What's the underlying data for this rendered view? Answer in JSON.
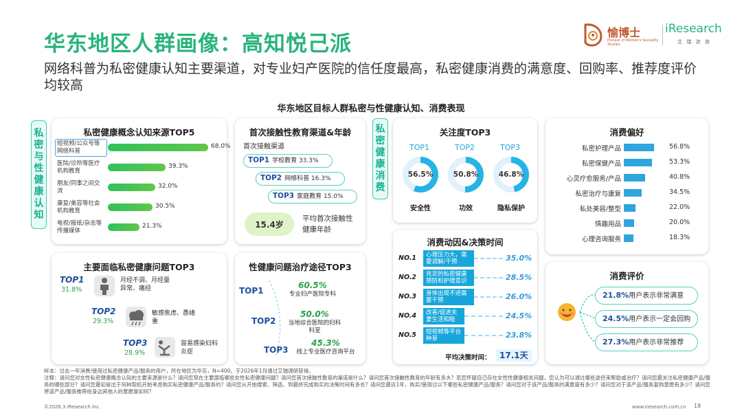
{
  "header": {
    "title": "华东地区人群画像：高知悦己派",
    "subtitle": "网络科普为私密健康认知主要渠道，对专业妇产医院的信任度最高，私密健康消费的满意度、回购率、推荐度评价均较高",
    "brand1_main": "愉博士",
    "brand1_sub": "Pioneer of Women's Sexuality Studies",
    "brand2_main": "iResearch",
    "brand2_sub": "艾 瑞 咨 询"
  },
  "chart_title": "华东地区目标人群私密与性健康认知、消费表现",
  "left_label": [
    "私",
    "密",
    "与",
    "性",
    "健",
    "康",
    "认",
    "知"
  ],
  "mid_label": [
    "私",
    "密",
    "健",
    "康",
    "消",
    "费"
  ],
  "sources": {
    "title": "私密健康概念认知来源TOP5",
    "items": [
      {
        "label": "短视频/公众号等网络科普",
        "pct": "68.0%",
        "value": 68.0
      },
      {
        "label": "医院/诊所等医疗机构教育",
        "pct": "39.3%",
        "value": 39.3
      },
      {
        "label": "朋友/同事之间交流",
        "pct": "32.0%",
        "value": 32.0
      },
      {
        "label": "康复/美容等社会机构教育",
        "pct": "30.5%",
        "value": 30.5
      },
      {
        "label": "电视/报纸/杂志等传播媒体",
        "pct": "21.3%",
        "value": 21.3
      }
    ]
  },
  "firstedu": {
    "title": "首次接触性教育渠道&年龄",
    "subtitle": "首次接触渠道",
    "items": [
      {
        "top": "TOP1",
        "text": "学校教育 33.3%"
      },
      {
        "top": "TOP2",
        "text": "网络科普 16.3%"
      },
      {
        "top": "TOP3",
        "text": "家庭教育 15.0%"
      }
    ],
    "age": "15.4岁",
    "age_label": "平均首次接触性健康年龄"
  },
  "attention": {
    "title": "关注度TOP3",
    "items": [
      {
        "top": "TOP1",
        "pct": "56.5%",
        "value": 56.5,
        "name": "安全性"
      },
      {
        "top": "TOP2",
        "pct": "50.8%",
        "value": 50.8,
        "name": "功效"
      },
      {
        "top": "TOP3",
        "pct": "46.8%",
        "value": 46.8,
        "name": "隐私保护"
      }
    ]
  },
  "preference": {
    "title": "消费偏好",
    "items": [
      {
        "label": "私密护理产品",
        "pct": "56.8%",
        "value": 56.8
      },
      {
        "label": "私密保健产品",
        "pct": "53.3%",
        "value": 53.3
      },
      {
        "label": "心灵疗愈服务/产品",
        "pct": "40.8%",
        "value": 40.8
      },
      {
        "label": "私密治疗与康复",
        "pct": "34.5%",
        "value": 34.5
      },
      {
        "label": "私处美容/整型",
        "pct": "22.0%",
        "value": 22.0
      },
      {
        "label": "情趣用品",
        "pct": "20.0%",
        "value": 20.0
      },
      {
        "label": "心理咨询服务",
        "pct": "18.3%",
        "value": 18.3
      }
    ]
  },
  "problems": {
    "title": "主要面临私密健康问题TOP3",
    "items": [
      {
        "top": "TOP1",
        "pct": "31.8%",
        "text": "月经不调、月经量异常、痛经"
      },
      {
        "top": "TOP2",
        "pct": "29.3%",
        "text": "敏感焦虑、愚绪重"
      },
      {
        "top": "TOP3",
        "pct": "28.9%",
        "text": "容易感染妇科炎症"
      }
    ]
  },
  "treatment": {
    "title": "性健康问题治疗途径TOP3",
    "items": [
      {
        "top": "TOP1",
        "pct": "60.5%",
        "text": "专业妇产医院专科"
      },
      {
        "top": "TOP2",
        "pct": "50.0%",
        "text": "当地综合医院的妇科科室"
      },
      {
        "top": "TOP3",
        "pct": "45.3%",
        "text": "线上专业医疗咨询平台"
      }
    ]
  },
  "motivation": {
    "title": "消费动因&决策时间",
    "items": [
      {
        "no": "NO.1",
        "text": "心理压力大，需要调解/干预",
        "pct": "35.0%",
        "value": 35.0
      },
      {
        "no": "NO.2",
        "text": "充足的私密健康预防和护理意识",
        "pct": "28.5%",
        "value": 28.5
      },
      {
        "no": "NO.3",
        "text": "身体出现不适需要干预",
        "pct": "26.0%",
        "value": 26.0
      },
      {
        "no": "NO.4",
        "text": "改善/促进夫妻生活和睦",
        "pct": "24.5%",
        "value": 24.5
      },
      {
        "no": "NO.5",
        "text": "短视频等平台种草",
        "pct": "23.8%",
        "value": 23.8
      }
    ],
    "decision_label": "平均决策时间：",
    "decision_value": "17.1天"
  },
  "evaluation": {
    "title": "消费评价",
    "items": [
      {
        "pct": "21.8%",
        "text": "用户表示非常满意"
      },
      {
        "pct": "24.5%",
        "text": "用户表示一定会回购"
      },
      {
        "pct": "27.3%",
        "text": "用户表示非常推荐"
      }
    ]
  },
  "footer": {
    "sample": "样本：过去一年消费/使用过私密健康产品/服务的用户，所在地区为华东，N=400，于2026年1月通过艾瑞调研获得。",
    "note": "注释：请问您对女性私密健康概念认知的主要来源是什么？请问您现在主要面临哪些女性私密健康问题？请问您首次接触性教育的渠道是什么？请问您首次接触性教育的年龄有多大？若您怀疑自己存在女性性健康相关问题，您认为可以通过哪些途径来帮助或治疗？请问您最关注私密健康产品/服务的哪些部分？请问您最初是出于何种契机开始考虑购买私密健康产品/服务的？请问您从开始搜索、筛选、到最终完成购买的决策时间有多长？请问您最近1年，购买/使用过以下哪些私密健康产品/服务？请问您对于该产品/服务的满意度有多少？请问您对于该产品/服务复购意愿有多少？请问您将该产品/服务推荐给身边其他人的意愿度如何？",
    "copyright": "©2026.3 iResearch Inc.",
    "website": "www.iresearch.com.cn",
    "page": "18"
  }
}
